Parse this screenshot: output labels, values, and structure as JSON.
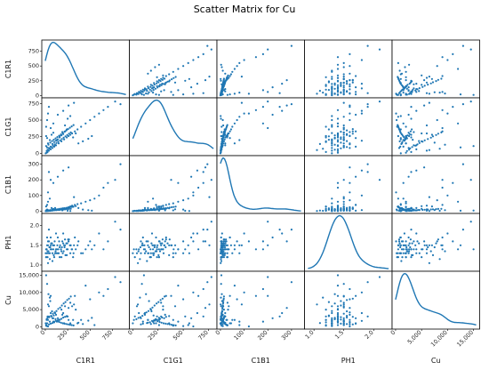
{
  "chart_data": {
    "type": "scatter",
    "title": "Scatter Matrix for Cu",
    "variables": [
      "C1R1",
      "C1G1",
      "C1B1",
      "PH1",
      "Cu"
    ],
    "diagonal": "kde",
    "point_color": "#1f77b4",
    "ranges": {
      "C1R1": [
        0,
        900
      ],
      "C1G1": [
        0,
        800
      ],
      "C1B1": [
        0,
        340
      ],
      "PH1": [
        0.9,
        2.25
      ],
      "Cu": [
        0,
        15500
      ]
    },
    "ticks": {
      "C1R1": [
        {
          "v": 0,
          "l": "0"
        },
        {
          "v": 250,
          "l": "250"
        },
        {
          "v": 500,
          "l": "500"
        },
        {
          "v": 750,
          "l": "750"
        }
      ],
      "C1G1": [
        {
          "v": 0,
          "l": "0"
        },
        {
          "v": 250,
          "l": "250"
        },
        {
          "v": 500,
          "l": "500"
        },
        {
          "v": 750,
          "l": "750"
        }
      ],
      "C1B1": [
        {
          "v": 0,
          "l": "0"
        },
        {
          "v": 100,
          "l": "100"
        },
        {
          "v": 200,
          "l": "200"
        },
        {
          "v": 300,
          "l": "300"
        }
      ],
      "PH1": [
        {
          "v": 1.0,
          "l": "1.0"
        },
        {
          "v": 1.5,
          "l": "1.5"
        },
        {
          "v": 2.0,
          "l": "2.0"
        }
      ],
      "Cu": [
        {
          "v": 0,
          "l": "0"
        },
        {
          "v": 5000,
          "l": "5,000"
        },
        {
          "v": 10000,
          "l": "10,000"
        },
        {
          "v": 15000,
          "l": "15,000"
        }
      ]
    },
    "points": [
      [
        5,
        0,
        0,
        1.3,
        1000
      ],
      [
        15,
        10,
        1,
        1.4,
        2000
      ],
      [
        25,
        20,
        2,
        1.2,
        3000
      ],
      [
        40,
        40,
        3,
        1.3,
        6000
      ],
      [
        60,
        60,
        5,
        1.4,
        4000
      ],
      [
        80,
        80,
        5,
        1.3,
        2500
      ],
      [
        100,
        100,
        8,
        1.5,
        1500
      ],
      [
        120,
        120,
        10,
        1.4,
        3500
      ],
      [
        150,
        150,
        12,
        1.3,
        2000
      ],
      [
        180,
        180,
        15,
        1.2,
        5000
      ],
      [
        210,
        210,
        18,
        1.5,
        1000
      ],
      [
        240,
        240,
        20,
        1.4,
        3000
      ],
      [
        260,
        260,
        25,
        1.6,
        2000
      ],
      [
        280,
        280,
        30,
        1.5,
        7000
      ],
      [
        300,
        300,
        35,
        1.4,
        6000
      ],
      [
        330,
        330,
        40,
        1.7,
        9000
      ],
      [
        360,
        360,
        45,
        1.5,
        1000
      ],
      [
        400,
        400,
        50,
        1.3,
        2000
      ],
      [
        450,
        450,
        60,
        1.4,
        12000
      ],
      [
        500,
        500,
        70,
        1.6,
        8000
      ],
      [
        550,
        550,
        80,
        1.5,
        500
      ],
      [
        600,
        600,
        100,
        1.8,
        10000
      ],
      [
        650,
        650,
        150,
        1.4,
        9000
      ],
      [
        700,
        700,
        180,
        1.6,
        11000
      ],
      [
        780,
        780,
        200,
        2.1,
        14500
      ],
      [
        840,
        740,
        300,
        1.9,
        13000
      ],
      [
        30,
        150,
        60,
        1.5,
        2000
      ],
      [
        50,
        200,
        80,
        1.3,
        1500
      ],
      [
        20,
        230,
        40,
        1.7,
        1000
      ],
      [
        10,
        260,
        30,
        1.2,
        500
      ],
      [
        70,
        280,
        20,
        1.4,
        3000
      ],
      [
        90,
        310,
        15,
        1.5,
        2500
      ],
      [
        110,
        120,
        20,
        1.3,
        4000
      ],
      [
        130,
        200,
        10,
        1.4,
        1500
      ],
      [
        160,
        260,
        8,
        1.2,
        2000
      ],
      [
        190,
        320,
        5,
        1.6,
        3500
      ],
      [
        220,
        420,
        12,
        1.5,
        6000
      ],
      [
        250,
        520,
        2,
        1.4,
        3000
      ],
      [
        280,
        560,
        1,
        1.3,
        1000
      ],
      [
        310,
        240,
        28,
        1.2,
        2000
      ],
      [
        340,
        300,
        32,
        1.4,
        5000
      ],
      [
        370,
        150,
        20,
        1.6,
        1200
      ],
      [
        420,
        180,
        10,
        1.3,
        800
      ],
      [
        480,
        220,
        6,
        1.5,
        1800
      ],
      [
        520,
        260,
        3,
        1.4,
        2600
      ],
      [
        40,
        80,
        2,
        1.6,
        700
      ],
      [
        60,
        100,
        3,
        1.7,
        900
      ],
      [
        80,
        140,
        4,
        1.1,
        1100
      ],
      [
        100,
        170,
        6,
        1.2,
        1300
      ],
      [
        120,
        190,
        7,
        1.8,
        1700
      ],
      [
        140,
        210,
        9,
        1.3,
        1900
      ],
      [
        160,
        240,
        11,
        1.45,
        2100
      ],
      [
        180,
        270,
        13,
        1.35,
        2300
      ],
      [
        200,
        290,
        14,
        1.55,
        2700
      ],
      [
        220,
        330,
        16,
        1.65,
        2900
      ],
      [
        240,
        360,
        18,
        1.25,
        3100
      ],
      [
        30,
        50,
        1,
        1.05,
        6500
      ],
      [
        50,
        70,
        2,
        1.15,
        8500
      ],
      [
        20,
        90,
        3,
        1.5,
        12500
      ],
      [
        10,
        110,
        4,
        1.4,
        15000
      ],
      [
        35,
        130,
        6,
        1.35,
        9500
      ],
      [
        55,
        160,
        7,
        1.45,
        7500
      ],
      [
        75,
        185,
        8,
        1.55,
        4500
      ],
      [
        95,
        205,
        9,
        1.25,
        3300
      ],
      [
        115,
        225,
        10,
        1.35,
        2200
      ],
      [
        135,
        245,
        12,
        1.5,
        1600
      ],
      [
        155,
        265,
        14,
        1.6,
        1400
      ],
      [
        175,
        285,
        16,
        1.4,
        1200
      ],
      [
        195,
        305,
        18,
        1.3,
        1000
      ],
      [
        215,
        325,
        19,
        1.45,
        900
      ],
      [
        235,
        345,
        21,
        1.55,
        800
      ],
      [
        255,
        365,
        23,
        1.65,
        700
      ],
      [
        275,
        385,
        25,
        1.5,
        600
      ],
      [
        295,
        405,
        27,
        1.4,
        500
      ],
      [
        315,
        425,
        29,
        1.3,
        400
      ],
      [
        15,
        35,
        1,
        1.4,
        2200
      ],
      [
        25,
        55,
        2,
        1.35,
        2600
      ],
      [
        45,
        75,
        3,
        1.45,
        2800
      ],
      [
        65,
        95,
        4,
        1.55,
        3200
      ],
      [
        85,
        115,
        5,
        1.5,
        3800
      ],
      [
        105,
        135,
        6,
        1.6,
        4200
      ],
      [
        125,
        155,
        7,
        1.3,
        4600
      ],
      [
        145,
        175,
        8,
        1.4,
        5200
      ],
      [
        165,
        195,
        9,
        1.5,
        5600
      ],
      [
        185,
        215,
        10,
        1.45,
        6200
      ],
      [
        205,
        235,
        11,
        1.35,
        6800
      ],
      [
        225,
        255,
        12,
        1.25,
        7200
      ],
      [
        245,
        275,
        13,
        1.55,
        7800
      ],
      [
        265,
        295,
        14,
        1.65,
        8200
      ],
      [
        285,
        315,
        15,
        1.5,
        8800
      ],
      [
        10,
        400,
        5,
        1.2,
        300
      ],
      [
        20,
        500,
        10,
        1.3,
        200
      ],
      [
        30,
        600,
        120,
        1.6,
        100
      ],
      [
        40,
        700,
        250,
        1.9,
        3000
      ],
      [
        60,
        380,
        200,
        1.5,
        9000
      ],
      [
        90,
        450,
        180,
        1.4,
        1500
      ],
      [
        140,
        580,
        220,
        1.7,
        2500
      ],
      [
        200,
        640,
        260,
        1.8,
        4000
      ],
      [
        260,
        720,
        280,
        1.6,
        5500
      ],
      [
        320,
        760,
        90,
        1.5,
        6500
      ]
    ]
  }
}
